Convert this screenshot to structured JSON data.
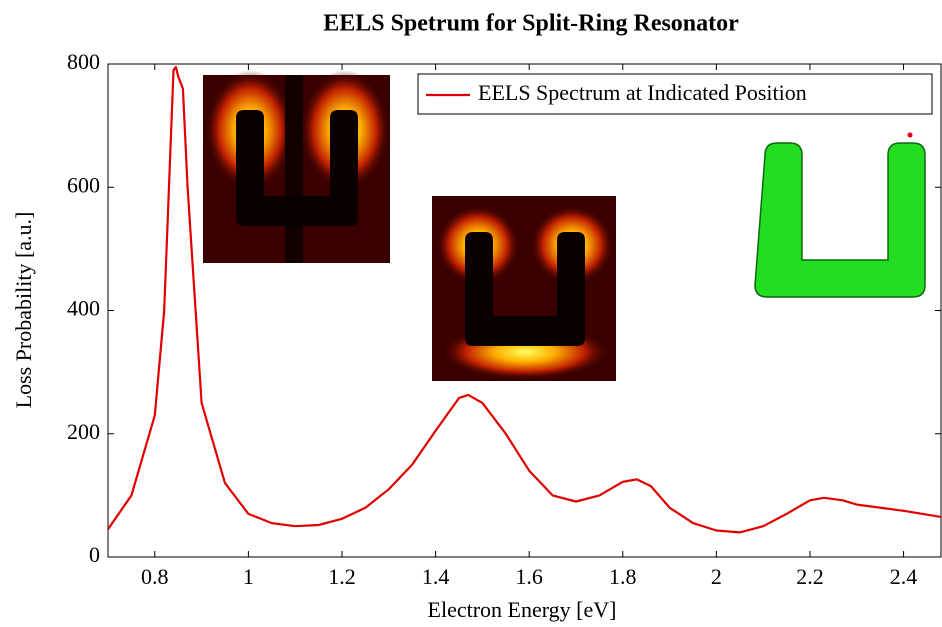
{
  "chart_data": {
    "type": "line",
    "title": "EELS Spetrum for Split-Ring Resonator",
    "x_label": "Electron Energy [eV]",
    "y_label": "Loss Probability [a.u.]",
    "x": [
      0.7,
      0.75,
      0.8,
      0.82,
      0.84,
      0.845,
      0.85,
      0.86,
      0.87,
      0.9,
      0.95,
      1.0,
      1.05,
      1.1,
      1.15,
      1.2,
      1.25,
      1.3,
      1.35,
      1.4,
      1.45,
      1.47,
      1.5,
      1.55,
      1.6,
      1.65,
      1.7,
      1.75,
      1.8,
      1.83,
      1.86,
      1.9,
      1.95,
      2.0,
      2.05,
      2.1,
      2.15,
      2.2,
      2.23,
      2.27,
      2.3,
      2.4,
      2.48
    ],
    "series": [
      {
        "name": "EELS Spectrum at Indicated Position",
        "color": "#e00000",
        "values": [
          45,
          100,
          230,
          400,
          790,
          795,
          780,
          760,
          600,
          250,
          120,
          70,
          55,
          50,
          52,
          62,
          80,
          110,
          150,
          205,
          258,
          263,
          250,
          200,
          140,
          100,
          90,
          100,
          122,
          126,
          115,
          80,
          55,
          43,
          40,
          50,
          70,
          92,
          96,
          92,
          85,
          75,
          65
        ]
      }
    ],
    "xlim": [
      0.7,
      2.48
    ],
    "ylim": [
      0,
      800
    ],
    "xticks": [
      0.8,
      1,
      1.2,
      1.4,
      1.6,
      1.8,
      2,
      2.2,
      2.4
    ],
    "yticks": [
      0,
      200,
      400,
      600,
      800
    ],
    "legend": "upper right",
    "grid": false
  }
}
